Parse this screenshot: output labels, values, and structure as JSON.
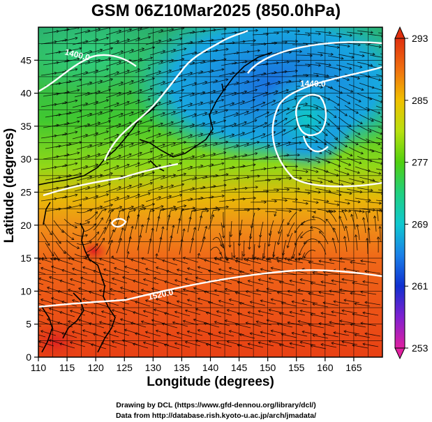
{
  "title": "GSM 06Z10Mar2025 (850.0hPa)",
  "xlabel": "Longitude (degrees)",
  "ylabel": "Latitude  (degrees)",
  "credit_line1": "Drawing by DCL (https://www.gfd-dennou.org/library/dcl/)",
  "credit_line2": "Data from http://database.rish.kyoto-u.ac.jp/arch/jmadata/",
  "chart_data": {
    "type": "heatmap",
    "variable": "temperature (K) with geopotential height contours and wind streamlines",
    "xlim": [
      110,
      170
    ],
    "ylim": [
      0,
      50
    ],
    "x_ticks": [
      "110",
      "115",
      "120",
      "125",
      "130",
      "135",
      "140",
      "145",
      "150",
      "155",
      "160",
      "165"
    ],
    "y_ticks": [
      "0",
      "5",
      "10",
      "15",
      "20",
      "25",
      "30",
      "35",
      "40",
      "45"
    ],
    "colorbar": {
      "min": 253,
      "max": 293,
      "ticks": [
        "253",
        "261",
        "269",
        "277",
        "285",
        "293"
      ]
    },
    "contour_labels": [
      {
        "text": "1400.0",
        "lon": 113.5,
        "lat": 43.5
      },
      {
        "text": "1440.0",
        "lon": 156.5,
        "lat": 38.5
      },
      {
        "text": "1520.0",
        "lon": 129,
        "lat": 8.5
      }
    ],
    "colors": {
      "c253": "#e020a0",
      "c257": "#8020d0",
      "c261": "#1030d0",
      "c265": "#1a80e8",
      "c269": "#10c8d0",
      "c273": "#20d080",
      "c277": "#50d010",
      "c281": "#b8e010",
      "c285": "#f0c000",
      "c289": "#f07010",
      "c293": "#e03010"
    }
  }
}
